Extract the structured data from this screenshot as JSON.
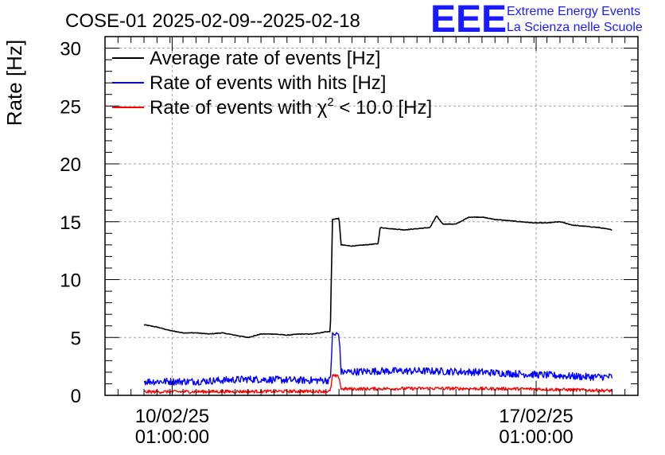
{
  "header": {
    "title": "COSE-01 2025-02-09--2025-02-18",
    "logo_text": "EEE",
    "project_line1": "Extreme Energy Events",
    "project_line2": "La Scienza nelle Scuole"
  },
  "colors": {
    "average": "#000000",
    "hits": "#0000ff",
    "chi2": "#ff0000",
    "logo": "#1a1aff"
  },
  "chart_data": {
    "type": "line",
    "title": "COSE-01 2025-02-09--2025-02-18",
    "xlabel": "",
    "ylabel": "Rate [Hz]",
    "ylim": [
      0,
      31
    ],
    "xlim": [
      "2025-02-08T18:00",
      "2025-02-19T00:00"
    ],
    "grid": true,
    "legend_position": "top-left",
    "yticks": [
      0,
      5,
      10,
      15,
      20,
      25,
      30
    ],
    "xticks": [
      {
        "x": "2025-02-10T01:00",
        "line1": "10/02/25",
        "line2": "01:00:00"
      },
      {
        "x": "2025-02-17T01:00",
        "line1": "17/02/25",
        "line2": "01:00:00"
      }
    ],
    "series": [
      {
        "name": "Average rate of events [Hz]",
        "legend_main": "Average rate of events [Hz]",
        "color": "#000000",
        "noise": 0.05,
        "points": [
          [
            "2025-02-09T12:00",
            6.1
          ],
          [
            "2025-02-09T18:00",
            5.9
          ],
          [
            "2025-02-10T00:00",
            5.6
          ],
          [
            "2025-02-10T06:00",
            5.4
          ],
          [
            "2025-02-10T12:00",
            5.4
          ],
          [
            "2025-02-10T18:00",
            5.3
          ],
          [
            "2025-02-11T00:00",
            5.4
          ],
          [
            "2025-02-11T06:00",
            5.2
          ],
          [
            "2025-02-11T12:00",
            5.0
          ],
          [
            "2025-02-11T18:00",
            5.3
          ],
          [
            "2025-02-12T00:00",
            5.3
          ],
          [
            "2025-02-12T06:00",
            5.2
          ],
          [
            "2025-02-12T12:00",
            5.3
          ],
          [
            "2025-02-12T18:00",
            5.3
          ],
          [
            "2025-02-13T00:00",
            5.5
          ],
          [
            "2025-02-13T02:00",
            5.5
          ],
          [
            "2025-02-13T03:00",
            15.2
          ],
          [
            "2025-02-13T06:00",
            15.3
          ],
          [
            "2025-02-13T07:00",
            13.0
          ],
          [
            "2025-02-13T12:00",
            12.9
          ],
          [
            "2025-02-13T18:00",
            13.0
          ],
          [
            "2025-02-14T00:00",
            13.1
          ],
          [
            "2025-02-14T01:00",
            14.5
          ],
          [
            "2025-02-14T06:00",
            14.4
          ],
          [
            "2025-02-14T12:00",
            14.3
          ],
          [
            "2025-02-14T18:00",
            14.4
          ],
          [
            "2025-02-15T00:00",
            14.5
          ],
          [
            "2025-02-15T03:00",
            15.5
          ],
          [
            "2025-02-15T06:00",
            14.8
          ],
          [
            "2025-02-15T12:00",
            14.8
          ],
          [
            "2025-02-15T18:00",
            15.4
          ],
          [
            "2025-02-16T00:00",
            15.4
          ],
          [
            "2025-02-16T06:00",
            15.2
          ],
          [
            "2025-02-16T12:00",
            15.1
          ],
          [
            "2025-02-16T18:00",
            15.0
          ],
          [
            "2025-02-17T00:00",
            14.9
          ],
          [
            "2025-02-17T06:00",
            14.9
          ],
          [
            "2025-02-17T12:00",
            15.0
          ],
          [
            "2025-02-17T18:00",
            14.7
          ],
          [
            "2025-02-18T00:00",
            14.6
          ],
          [
            "2025-02-18T06:00",
            14.5
          ],
          [
            "2025-02-18T12:00",
            14.3
          ]
        ]
      },
      {
        "name": "Rate of events with hits [Hz]",
        "legend_main": "Rate of events with hits [Hz]",
        "color": "#0000ff",
        "noise": 0.45,
        "points": [
          [
            "2025-02-09T12:00",
            1.2
          ],
          [
            "2025-02-10T12:00",
            1.2
          ],
          [
            "2025-02-11T12:00",
            1.4
          ],
          [
            "2025-02-12T12:00",
            1.3
          ],
          [
            "2025-02-13T00:00",
            1.3
          ],
          [
            "2025-02-13T02:00",
            1.3
          ],
          [
            "2025-02-13T03:00",
            5.2
          ],
          [
            "2025-02-13T06:00",
            5.3
          ],
          [
            "2025-02-13T07:00",
            2.0
          ],
          [
            "2025-02-14T00:00",
            2.1
          ],
          [
            "2025-02-15T00:00",
            2.1
          ],
          [
            "2025-02-16T00:00",
            2.0
          ],
          [
            "2025-02-17T00:00",
            1.8
          ],
          [
            "2025-02-18T00:00",
            1.6
          ],
          [
            "2025-02-18T12:00",
            1.6
          ]
        ]
      },
      {
        "name": "Rate of events with χ2 < 10.0 [Hz]",
        "legend_main": "Rate of events with χ",
        "legend_sup": "2",
        "legend_tail": " < 10.0 [Hz]",
        "color": "#ff0000",
        "noise": 0.2,
        "points": [
          [
            "2025-02-09T12:00",
            0.3
          ],
          [
            "2025-02-12T12:00",
            0.35
          ],
          [
            "2025-02-13T02:00",
            0.35
          ],
          [
            "2025-02-13T03:00",
            1.7
          ],
          [
            "2025-02-13T06:00",
            1.6
          ],
          [
            "2025-02-13T07:00",
            0.55
          ],
          [
            "2025-02-15T00:00",
            0.6
          ],
          [
            "2025-02-17T00:00",
            0.55
          ],
          [
            "2025-02-18T12:00",
            0.4
          ]
        ]
      }
    ]
  }
}
